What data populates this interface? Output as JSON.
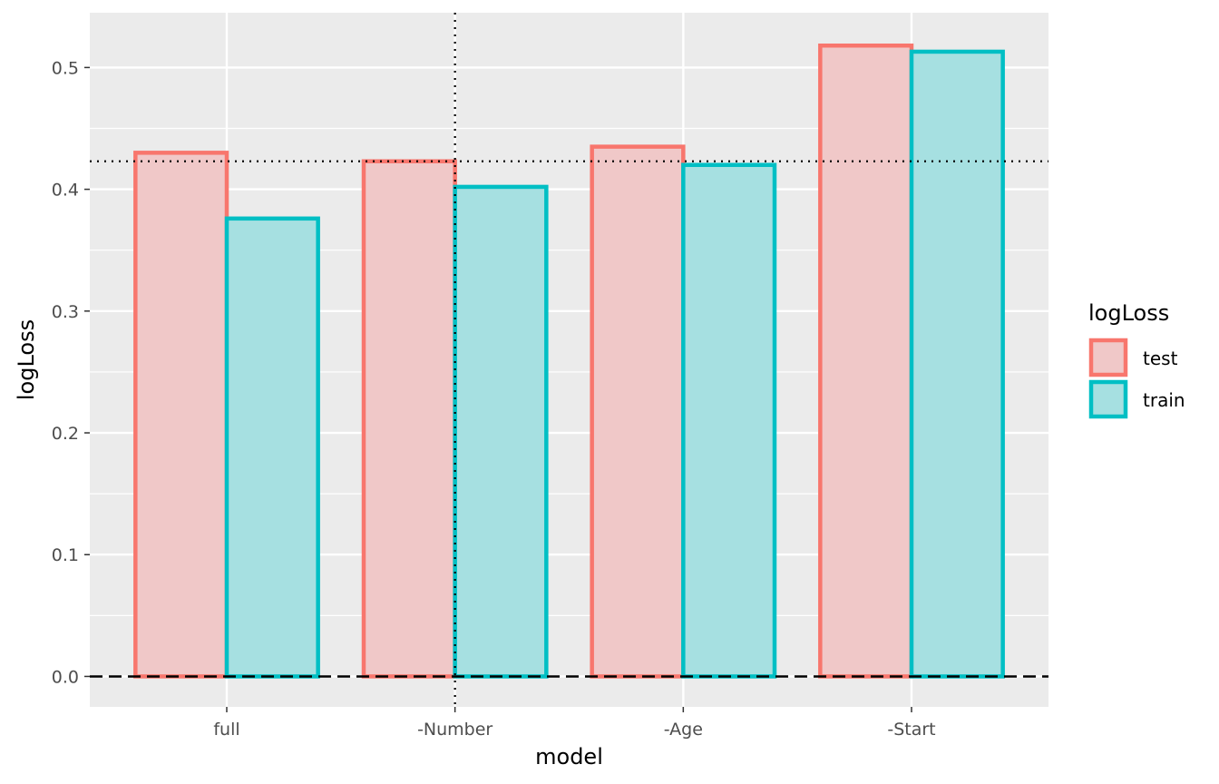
{
  "chart_data": {
    "type": "bar",
    "title": "",
    "xlabel": "model",
    "ylabel": "logLoss",
    "categories": [
      "full",
      "-Number",
      "-Age",
      "-Start"
    ],
    "series": [
      {
        "name": "test",
        "values": [
          0.43,
          0.423,
          0.435,
          0.518
        ]
      },
      {
        "name": "train",
        "values": [
          0.376,
          0.402,
          0.42,
          0.513
        ]
      }
    ],
    "ylim": [
      -0.025,
      0.545
    ],
    "yticks": [
      "0.0",
      "0.1",
      "0.2",
      "0.3",
      "0.4",
      "0.5"
    ],
    "grid": true,
    "reference_lines": {
      "horizontal_dotted_y": 0.423,
      "horizontal_dashed_y": 0.0,
      "vertical_dotted_category": "-Number"
    },
    "legend": {
      "title": "logLoss",
      "placement": "right",
      "entries": [
        "test",
        "train"
      ]
    },
    "colors": {
      "test_stroke": "#F8766D",
      "test_fill": "#F0C8C8",
      "train_stroke": "#00BFC4",
      "train_fill": "#A6E0E1",
      "panel_background": "#EBEBEB",
      "grid": "#FFFFFF"
    }
  }
}
